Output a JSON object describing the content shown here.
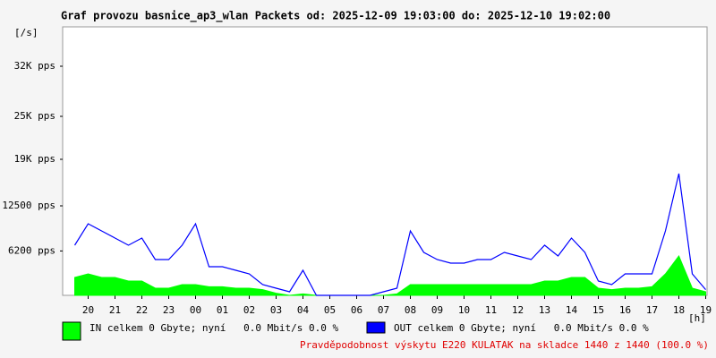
{
  "chart_data": {
    "type": "line",
    "title": "Graf provozu basnice_ap3_wlan Packets od: 2025-12-09 19:03:00 do: 2025-12-10 19:02:00",
    "y_unit": "[/s]",
    "x_unit": "[h]",
    "xlim": [
      19.05,
      43.05
    ],
    "xticks": [
      20,
      21,
      22,
      23,
      {
        "value": 24,
        "label": "00"
      },
      {
        "value": 25,
        "label": "01"
      },
      {
        "value": 26,
        "label": "02"
      },
      {
        "value": 27,
        "label": "03"
      },
      {
        "value": 28,
        "label": "04"
      },
      {
        "value": 29,
        "label": "05"
      },
      {
        "value": 30,
        "label": "06"
      },
      {
        "value": 31,
        "label": "07"
      },
      {
        "value": 32,
        "label": "08"
      },
      {
        "value": 33,
        "label": "09"
      },
      {
        "value": 34,
        "label": "10"
      },
      {
        "value": 35,
        "label": "11"
      },
      {
        "value": 36,
        "label": "12"
      },
      {
        "value": 37,
        "label": "13"
      },
      {
        "value": 38,
        "label": "14"
      },
      {
        "value": 39,
        "label": "15"
      },
      {
        "value": 40,
        "label": "16"
      },
      {
        "value": 41,
        "label": "17"
      },
      {
        "value": 42,
        "label": "18"
      },
      {
        "value": 43,
        "label": "19"
      }
    ],
    "ylim": [
      0,
      37500
    ],
    "yticks": [
      {
        "value": 6200,
        "label": "6200 pps"
      },
      {
        "value": 12500,
        "label": "12500 pps"
      },
      {
        "value": 19000,
        "label": "19K pps"
      },
      {
        "value": 25000,
        "label": "25K pps"
      },
      {
        "value": 32000,
        "label": "32K pps"
      }
    ],
    "x": [
      19.5,
      20,
      20.5,
      21,
      21.5,
      22,
      22.5,
      23,
      23.5,
      24,
      24.5,
      25,
      25.5,
      26,
      26.5,
      27,
      27.5,
      28,
      28.5,
      29,
      29.5,
      30,
      30.5,
      31,
      31.5,
      32,
      32.5,
      33,
      33.5,
      34,
      34.5,
      35,
      35.5,
      36,
      36.5,
      37,
      37.5,
      38,
      38.5,
      39,
      39.5,
      40,
      40.5,
      41,
      41.5,
      42,
      42.5,
      43
    ],
    "series": [
      {
        "name": "IN celkem 0 Gbyte; nyní   0.0 Mbit/s 0.0 %",
        "color": "#00ff00",
        "fill": true,
        "values": [
          2500,
          3000,
          2500,
          2500,
          2000,
          2000,
          1000,
          1000,
          1500,
          1500,
          1200,
          1200,
          1000,
          1000,
          800,
          300,
          0,
          200,
          0,
          0,
          0,
          0,
          0,
          0,
          200,
          1500,
          1500,
          1500,
          1500,
          1500,
          1500,
          1500,
          1500,
          1500,
          1500,
          2000,
          2000,
          2500,
          2500,
          1000,
          800,
          1000,
          1000,
          1200,
          3000,
          5500,
          1000,
          500
        ]
      },
      {
        "name": "OUT celkem 0 Gbyte; nyní   0.0 Mbit/s 0.0 %",
        "color": "#0000ff",
        "fill": false,
        "values": [
          7000,
          10000,
          9000,
          8000,
          7000,
          8000,
          5000,
          5000,
          7000,
          10000,
          4000,
          4000,
          3500,
          3000,
          1500,
          1000,
          500,
          3500,
          0,
          0,
          0,
          0,
          0,
          500,
          1000,
          9000,
          6000,
          5000,
          4500,
          4500,
          5000,
          5000,
          6000,
          5500,
          5000,
          7000,
          5500,
          8000,
          6000,
          2000,
          1500,
          3000,
          3000,
          3000,
          9000,
          17000,
          3000,
          800
        ]
      }
    ],
    "note": "Pravděpodobnost výskytu E220 KULATAK na skladce 1440 z 1440 (100.0 %)"
  }
}
